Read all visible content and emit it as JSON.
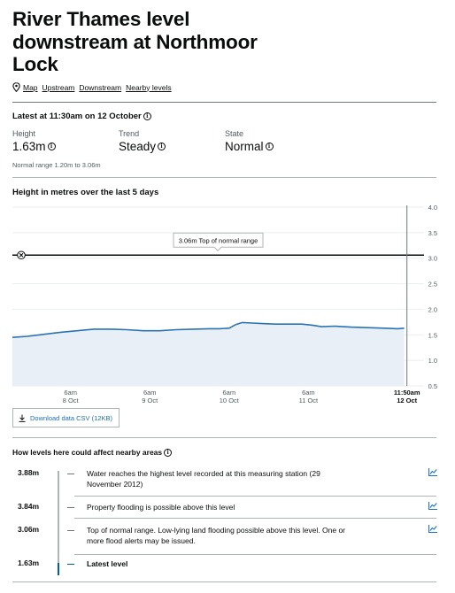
{
  "page": {
    "title": "River Thames level downstream at Northmoor Lock",
    "nav": {
      "map": "Map",
      "upstream": "Upstream",
      "downstream": "Downstream",
      "nearby": "Nearby levels"
    }
  },
  "latest": {
    "heading": "Latest at 11:30am on 12 October",
    "height_label": "Height",
    "height_value": "1.63m",
    "trend_label": "Trend",
    "trend_value": "Steady",
    "state_label": "State",
    "state_value": "Normal",
    "normal_range": "Normal range 1.20m to 3.06m"
  },
  "chart": {
    "heading": "Height in metres over the last 5 days",
    "threshold_label": "3.06m Top of normal range",
    "download_label": "Download data CSV (12KB)"
  },
  "chart_data": {
    "type": "area",
    "title": "Height in metres over the last 5 days",
    "ylim": [
      0.5,
      4.0
    ],
    "yticks": [
      "4.0",
      "3.5",
      "3.0",
      "2.5",
      "2.0",
      "1.5",
      "1.0",
      "0.5"
    ],
    "xticks": [
      {
        "t": 0,
        "line1": "6am",
        "line2": "8 Oct"
      },
      {
        "t": 24,
        "line1": "6am",
        "line2": "9 Oct"
      },
      {
        "t": 48,
        "line1": "6am",
        "line2": "10 Oct"
      },
      {
        "t": 72,
        "line1": "6am",
        "line2": "11 Oct"
      },
      {
        "t": 101.83,
        "line1": "11:50am",
        "line2": "12 Oct"
      }
    ],
    "xrange_hours": [
      -17.6,
      107.0
    ],
    "threshold": 3.06,
    "series": [
      {
        "x_hours": [
          -17.6,
          -13.0,
          -8.0,
          -3.0,
          2.0,
          7.0,
          12.0,
          17.0,
          22.0,
          27.0,
          32.0,
          37.0,
          42.0,
          45.0,
          48.0,
          50.0,
          52.0,
          55.0,
          58.0,
          62.0,
          66.0,
          70.0,
          73.0,
          76.0,
          80.0,
          85.0,
          90.0,
          95.0,
          99.0,
          101.0
        ],
        "y_m": [
          1.45,
          1.47,
          1.51,
          1.55,
          1.58,
          1.61,
          1.61,
          1.6,
          1.58,
          1.58,
          1.6,
          1.61,
          1.62,
          1.62,
          1.63,
          1.7,
          1.74,
          1.73,
          1.72,
          1.71,
          1.71,
          1.71,
          1.69,
          1.66,
          1.67,
          1.65,
          1.64,
          1.63,
          1.62,
          1.63
        ]
      }
    ]
  },
  "impacts": {
    "heading": "How levels here could affect nearby areas",
    "rows": [
      {
        "level": "3.88m",
        "text": "Water reaches the highest level recorded at this measuring station (29 November 2012)"
      },
      {
        "level": "3.84m",
        "text": "Property flooding is possible above this level"
      },
      {
        "level": "3.06m",
        "text": "Top of normal range. Low-lying land flooding possible above this level. One or more flood alerts may be issued."
      },
      {
        "level": "1.63m",
        "text": "Latest level"
      }
    ]
  },
  "colors": {
    "line": "#2b73b0",
    "fill": "#e8eff7",
    "link": "#1d70b8",
    "accent": "#005ea5"
  }
}
